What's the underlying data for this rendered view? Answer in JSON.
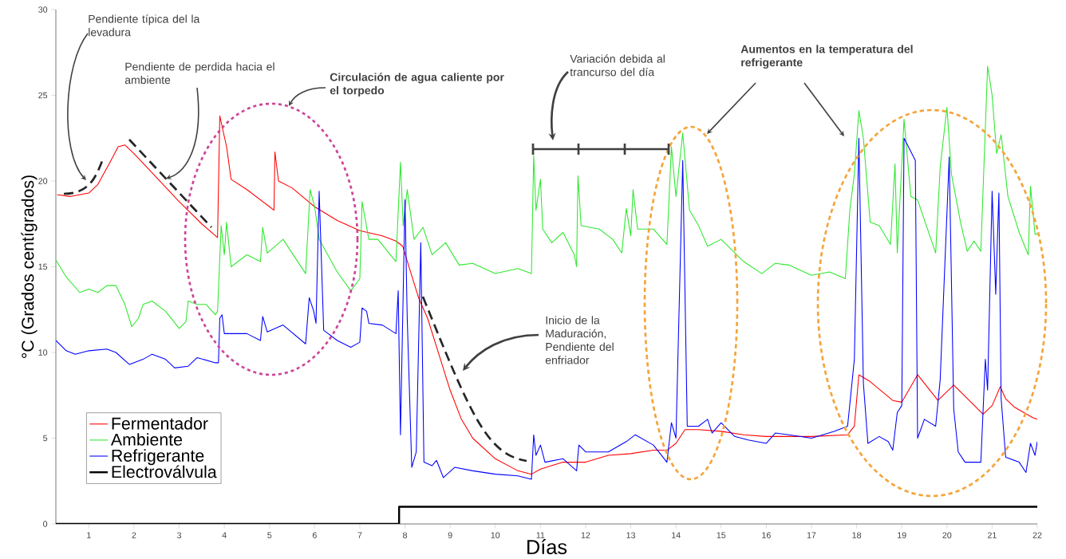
{
  "chart_data": {
    "type": "line",
    "xlabel": "Días",
    "ylabel": "°C (Grados centígrados)",
    "xlim": [
      0.27,
      22
    ],
    "ylim": [
      0,
      30
    ],
    "xticks": [
      1,
      2,
      3,
      4,
      5,
      6,
      7,
      8,
      9,
      10,
      11,
      12,
      13,
      14,
      15,
      16,
      17,
      18,
      19,
      20,
      21,
      22
    ],
    "yticks": [
      0,
      5,
      10,
      15,
      20,
      25,
      30
    ],
    "legend": "bottom left",
    "annotations": [
      "Pendiente típica del la levadura",
      "Pendiente de perdida hacia el ambiente",
      "Circulación de agua caliente por el torpedo",
      "Variación debida al trancurso del día",
      "Aumentos en la temperatura del refrigerante",
      "Inicio de la Maduración, Pendiente del enfriador"
    ],
    "series": [
      {
        "name": "Fermentador",
        "color": "#ff0000",
        "x": [
          0.3,
          0.6,
          1.0,
          1.2,
          1.45,
          1.65,
          1.8,
          2.0,
          2.5,
          3.0,
          3.5,
          3.85,
          3.9,
          4.05,
          4.15,
          4.5,
          5.0,
          5.1,
          5.12,
          5.2,
          5.5,
          6.0,
          6.5,
          7.0,
          7.5,
          7.8,
          7.95,
          8.1,
          8.3,
          8.5,
          8.75,
          9.0,
          9.25,
          9.5,
          10.0,
          10.5,
          10.8,
          11.0,
          11.5,
          12.0,
          12.5,
          13.0,
          13.5,
          13.8,
          14.0,
          14.2,
          14.5,
          15.0,
          15.5,
          16.0,
          17.0,
          17.8,
          17.95,
          18.05,
          18.3,
          18.8,
          19.0,
          19.35,
          19.8,
          20.15,
          20.8,
          21.0,
          21.18,
          21.3,
          21.5,
          21.9,
          22.0
        ],
        "values": [
          19.2,
          19.1,
          19.3,
          19.8,
          21.0,
          22.0,
          22.1,
          21.6,
          20.2,
          18.8,
          17.5,
          16.7,
          23.8,
          22.0,
          20.1,
          19.5,
          18.5,
          18.3,
          21.7,
          20.0,
          19.6,
          18.5,
          17.7,
          17.1,
          16.8,
          16.5,
          16.2,
          14.9,
          13.2,
          12.0,
          9.9,
          7.8,
          6.1,
          5.0,
          3.8,
          3.1,
          2.9,
          3.2,
          3.6,
          3.6,
          4.0,
          4.1,
          4.3,
          4.3,
          4.7,
          5.5,
          5.5,
          5.4,
          5.2,
          5.1,
          5.1,
          5.2,
          5.7,
          8.7,
          8.3,
          7.2,
          7.1,
          8.7,
          7.2,
          8.1,
          6.4,
          6.9,
          8.0,
          7.3,
          6.8,
          6.2,
          6.1
        ]
      },
      {
        "name": "Ambiente",
        "color": "#2ee82e",
        "x": [
          0.27,
          0.5,
          0.8,
          1.0,
          1.2,
          1.4,
          1.6,
          1.8,
          1.95,
          2.1,
          2.2,
          2.4,
          2.7,
          3.0,
          3.15,
          3.2,
          3.4,
          3.6,
          3.8,
          3.85,
          3.93,
          4.0,
          4.05,
          4.15,
          4.5,
          4.8,
          4.85,
          4.95,
          5.3,
          5.8,
          5.9,
          6.0,
          6.1,
          6.5,
          6.8,
          7.0,
          7.05,
          7.2,
          7.4,
          7.8,
          7.9,
          7.96,
          8.05,
          8.2,
          8.4,
          8.6,
          8.9,
          9.2,
          9.5,
          10.0,
          10.5,
          10.8,
          10.85,
          10.9,
          11.0,
          11.05,
          11.25,
          11.5,
          11.75,
          11.8,
          11.83,
          11.9,
          12.3,
          12.6,
          12.8,
          12.9,
          13.0,
          13.05,
          13.15,
          13.5,
          13.8,
          13.9,
          14.0,
          14.15,
          14.3,
          14.5,
          14.7,
          15.0,
          15.5,
          15.9,
          16.2,
          16.5,
          17.0,
          17.4,
          17.75,
          17.85,
          17.95,
          18.05,
          18.15,
          18.3,
          18.5,
          18.75,
          18.85,
          18.9,
          19.05,
          19.2,
          19.35,
          19.75,
          19.85,
          20.0,
          20.1,
          20.3,
          20.45,
          20.6,
          20.75,
          20.9,
          21.0,
          21.1,
          21.2,
          21.35,
          21.6,
          21.8,
          21.85,
          21.95,
          22.0
        ],
        "values": [
          15.4,
          14.4,
          13.5,
          13.7,
          13.5,
          13.9,
          13.9,
          12.8,
          11.5,
          12.0,
          12.8,
          13.0,
          12.4,
          11.4,
          11.8,
          13.0,
          12.8,
          12.8,
          12.2,
          12.4,
          17.4,
          15.7,
          17.6,
          15.0,
          15.7,
          15.3,
          17.3,
          15.8,
          16.6,
          14.6,
          19.5,
          18.5,
          16.6,
          14.7,
          13.6,
          14.3,
          18.8,
          16.6,
          16.6,
          15.3,
          21.1,
          17.4,
          19.5,
          16.6,
          17.3,
          15.7,
          16.4,
          15.1,
          15.2,
          14.6,
          14.9,
          14.6,
          21.5,
          18.3,
          20.1,
          17.2,
          16.4,
          17.0,
          15.7,
          15.0,
          20.3,
          17.4,
          17.2,
          16.6,
          15.8,
          18.4,
          16.8,
          19.5,
          17.2,
          17.2,
          16.3,
          22.0,
          19.1,
          22.8,
          18.3,
          17.4,
          16.2,
          16.6,
          15.3,
          14.6,
          15.2,
          15.1,
          14.5,
          14.7,
          14.3,
          18.3,
          20.4,
          24.1,
          22.5,
          17.6,
          17.4,
          16.3,
          21.0,
          15.8,
          23.6,
          19.1,
          18.9,
          15.8,
          20.8,
          24.3,
          20.4,
          17.6,
          15.9,
          16.5,
          15.9,
          26.7,
          25.0,
          21.6,
          22.7,
          19.1,
          17.0,
          15.7,
          19.7,
          16.9,
          16.9
        ]
      },
      {
        "name": "Refrigerante",
        "color": "#0000ff",
        "x": [
          0.27,
          0.5,
          0.7,
          1.0,
          1.4,
          1.6,
          1.9,
          2.2,
          2.4,
          2.7,
          2.9,
          3.2,
          3.4,
          3.8,
          3.87,
          3.9,
          3.95,
          4.0,
          4.5,
          4.8,
          4.85,
          4.95,
          5.3,
          5.8,
          5.88,
          5.98,
          6.03,
          6.1,
          6.2,
          6.5,
          6.8,
          7.0,
          7.05,
          7.15,
          7.2,
          7.5,
          7.8,
          7.85,
          7.9,
          8.0,
          8.05,
          8.15,
          8.25,
          8.35,
          8.42,
          8.6,
          8.7,
          8.85,
          9.1,
          9.5,
          10.0,
          10.5,
          10.8,
          10.85,
          10.9,
          11.0,
          11.1,
          11.5,
          11.8,
          11.85,
          12.0,
          12.5,
          12.9,
          13.1,
          13.5,
          13.8,
          13.9,
          14.0,
          14.15,
          14.25,
          14.5,
          14.7,
          14.8,
          15.0,
          15.3,
          15.6,
          16.0,
          16.2,
          16.5,
          17.0,
          17.5,
          17.8,
          17.95,
          18.05,
          18.15,
          18.25,
          18.5,
          18.7,
          18.8,
          18.9,
          19.0,
          19.05,
          19.3,
          19.35,
          19.5,
          19.75,
          19.85,
          20.05,
          20.15,
          20.25,
          20.4,
          20.75,
          20.85,
          20.9,
          21.0,
          21.08,
          21.15,
          21.2,
          21.3,
          21.6,
          21.75,
          21.85,
          21.95,
          22.0
        ],
        "values": [
          10.7,
          10.1,
          9.9,
          10.1,
          10.2,
          10.0,
          9.3,
          9.6,
          9.9,
          9.6,
          9.1,
          9.2,
          9.7,
          9.4,
          9.4,
          12.0,
          12.2,
          11.1,
          11.1,
          10.7,
          12.1,
          11.2,
          11.6,
          10.5,
          13.2,
          12.4,
          11.7,
          19.4,
          11.3,
          10.7,
          10.3,
          10.6,
          12.6,
          12.4,
          11.7,
          11.6,
          11.1,
          13.6,
          5.2,
          18.9,
          12.0,
          3.3,
          4.2,
          16.4,
          3.6,
          3.4,
          3.7,
          2.7,
          3.3,
          3.1,
          2.9,
          2.8,
          2.6,
          5.2,
          4.0,
          4.6,
          3.6,
          3.8,
          3.1,
          4.6,
          4.2,
          4.2,
          4.8,
          5.2,
          4.6,
          3.6,
          5.9,
          5.0,
          21.2,
          5.7,
          5.7,
          6.1,
          5.3,
          5.9,
          5.1,
          4.9,
          4.7,
          5.3,
          5.2,
          5.0,
          5.4,
          5.7,
          9.6,
          22.5,
          8.2,
          4.7,
          5.1,
          4.8,
          4.3,
          6.5,
          6.9,
          22.5,
          21.2,
          5.0,
          6.1,
          5.7,
          8.4,
          21.4,
          6.7,
          4.2,
          3.6,
          3.6,
          9.6,
          7.8,
          19.4,
          13.4,
          19.3,
          7.3,
          3.9,
          3.6,
          3.0,
          4.7,
          4.0,
          4.8
        ]
      },
      {
        "name": "Electroválvula",
        "color": "#000000",
        "x": [
          0.27,
          7.87,
          7.87,
          22.0
        ],
        "values": [
          0,
          0,
          1,
          1
        ]
      }
    ]
  }
}
